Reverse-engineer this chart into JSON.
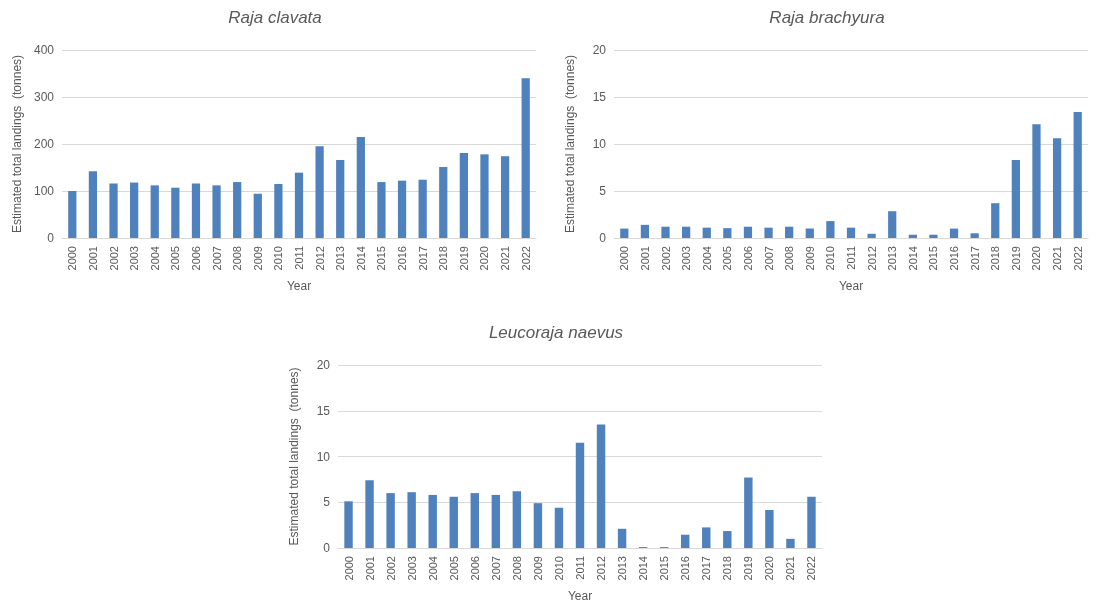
{
  "chart_data": [
    {
      "type": "bar",
      "title": "Raja clavata",
      "xlabel": "Year",
      "ylabel": "Estimated total landings  (tonnes)",
      "categories": [
        "2000",
        "2001",
        "2002",
        "2003",
        "2004",
        "2005",
        "2006",
        "2007",
        "2008",
        "2009",
        "2010",
        "2011",
        "2012",
        "2013",
        "2014",
        "2015",
        "2016",
        "2017",
        "2018",
        "2019",
        "2020",
        "2021",
        "2022"
      ],
      "values": [
        100,
        142,
        116,
        118,
        112,
        107,
        116,
        112,
        119,
        94,
        115,
        139,
        195,
        166,
        215,
        119,
        122,
        124,
        151,
        181,
        178,
        174,
        340
      ],
      "color": "#4f81bd",
      "ylim": [
        0,
        400
      ],
      "yticks": [
        0,
        100,
        200,
        300,
        400
      ],
      "grid": "y"
    },
    {
      "type": "bar",
      "title": "Raja brachyura",
      "xlabel": "Year",
      "ylabel": "Estimated total landings  (tonnes)",
      "categories": [
        "2000",
        "2001",
        "2002",
        "2003",
        "2004",
        "2005",
        "2006",
        "2007",
        "2008",
        "2009",
        "2010",
        "2011",
        "2012",
        "2013",
        "2014",
        "2015",
        "2016",
        "2017",
        "2018",
        "2019",
        "2020",
        "2021",
        "2022"
      ],
      "values": [
        1.0,
        1.4,
        1.2,
        1.2,
        1.1,
        1.05,
        1.2,
        1.1,
        1.2,
        1.0,
        1.8,
        1.1,
        0.45,
        2.85,
        0.35,
        0.35,
        1.0,
        0.5,
        3.7,
        8.3,
        12.1,
        10.6,
        13.4
      ],
      "color": "#4f81bd",
      "ylim": [
        0,
        20
      ],
      "yticks": [
        0,
        5,
        10,
        15,
        20
      ],
      "grid": "y"
    },
    {
      "type": "bar",
      "title": "Leucoraja naevus",
      "xlabel": "Year",
      "ylabel": "Estimated total landings  (tonnes)",
      "categories": [
        "2000",
        "2001",
        "2002",
        "2003",
        "2004",
        "2005",
        "2006",
        "2007",
        "2008",
        "2009",
        "2010",
        "2011",
        "2012",
        "2013",
        "2014",
        "2015",
        "2016",
        "2017",
        "2018",
        "2019",
        "2020",
        "2021",
        "2022"
      ],
      "values": [
        5.1,
        7.4,
        6.0,
        6.1,
        5.8,
        5.6,
        6.0,
        5.8,
        6.2,
        4.9,
        4.4,
        11.5,
        13.5,
        2.1,
        0.1,
        0.1,
        1.45,
        2.25,
        1.85,
        7.7,
        4.15,
        1.0,
        5.6
      ],
      "color": "#4f81bd",
      "ylim": [
        0,
        20
      ],
      "yticks": [
        0,
        5,
        10,
        15,
        20
      ],
      "grid": "y"
    }
  ]
}
